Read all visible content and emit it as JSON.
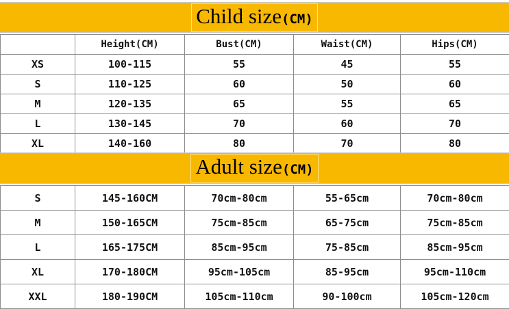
{
  "child": {
    "title_main": "Child size",
    "title_unit": "(CM)",
    "headers": [
      "",
      "Height(CM)",
      "Bust(CM)",
      "Waist(CM)",
      "Hips(CM)"
    ],
    "rows": [
      [
        "XS",
        "100-115",
        "55",
        "45",
        "55"
      ],
      [
        "S",
        "110-125",
        "60",
        "50",
        "60"
      ],
      [
        "M",
        "120-135",
        "65",
        "55",
        "65"
      ],
      [
        "L",
        "130-145",
        "70",
        "60",
        "70"
      ],
      [
        "XL",
        "140-160",
        "80",
        "70",
        "80"
      ]
    ]
  },
  "adult": {
    "title_main": "Adult size",
    "title_unit": "(CM)",
    "rows": [
      [
        "S",
        "145-160CM",
        "70cm-80cm",
        "55-65cm",
        "70cm-80cm"
      ],
      [
        "M",
        "150-165CM",
        "75cm-85cm",
        "65-75cm",
        "75cm-85cm"
      ],
      [
        "L",
        "165-175CM",
        "85cm-95cm",
        "75-85cm",
        "85cm-95cm"
      ],
      [
        "XL",
        "170-180CM",
        "95cm-105cm",
        "85-95cm",
        "95cm-110cm"
      ],
      [
        "XXL",
        "180-190CM",
        "105cm-110cm",
        "90-100cm",
        "105cm-120cm"
      ]
    ]
  },
  "colors": {
    "banner": "#f9b800",
    "grid": "#8c8c8c"
  }
}
